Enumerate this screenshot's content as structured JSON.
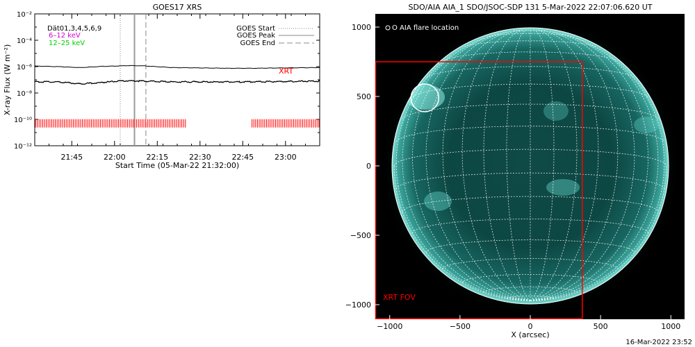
{
  "chart_data": [
    {
      "type": "line",
      "title": "GOES17 XRS",
      "xlabel": "Start Time (05-Mar-22 21:32:00)",
      "ylabel": "X-ray Flux (W m⁻²)",
      "y_scale": "log",
      "ylim": [
        1e-12,
        0.01
      ],
      "xlim": [
        "21:32",
        "23:12"
      ],
      "x_ticks": [
        "21:45",
        "22:00",
        "22:15",
        "22:30",
        "22:45",
        "23:00"
      ],
      "y_ticks": [
        "10⁻²",
        "10⁻⁴",
        "10⁻⁶",
        "10⁻⁸",
        "10⁻¹⁰",
        "10⁻¹²"
      ],
      "legend_left": [
        {
          "text": "Dät01,3,4,5,6,9",
          "color": "#000000"
        },
        {
          "text": "6–12 keV",
          "color": "#d000d0"
        },
        {
          "text": "12–25 keV",
          "color": "#00d000"
        }
      ],
      "legend_right": [
        {
          "label": "GOES Start",
          "style": "dotted"
        },
        {
          "label": "GOES Peak",
          "style": "solid"
        },
        {
          "label": "GOES End",
          "style": "dashed"
        }
      ],
      "annotation": {
        "text": "XRT",
        "color": "#ff0000"
      },
      "markers": {
        "goes_start": "22:02",
        "goes_peak": "22:07",
        "goes_end": "22:11"
      },
      "series": [
        {
          "x": [
            "21:32",
            "21:40",
            "21:48",
            "21:52",
            "21:56",
            "22:00",
            "22:05",
            "22:10",
            "22:20",
            "22:30",
            "22:40",
            "22:50",
            "23:00",
            "23:12"
          ],
          "values": [
            1.1e-06,
            1e-06,
            8.5e-07,
            9.5e-07,
            1.05e-06,
            1.1e-06,
            1.2e-06,
            1.15e-06,
            8.5e-07,
            8e-07,
            7.5e-07,
            7.5e-07,
            8e-07,
            8.5e-07
          ],
          "color": "#000000"
        },
        {
          "x": [
            "21:32",
            "21:40",
            "21:48",
            "21:52",
            "21:56",
            "22:00",
            "22:05",
            "22:10",
            "22:20",
            "22:30",
            "22:40",
            "22:50",
            "23:00",
            "23:12"
          ],
          "values": [
            7e-08,
            7e-08,
            5e-08,
            5.5e-08,
            6.5e-08,
            7.5e-08,
            8.5e-08,
            8e-08,
            7e-08,
            7e-08,
            7e-08,
            7e-08,
            7.5e-08,
            8e-08
          ],
          "color": "#000000"
        }
      ],
      "xrt_obs_segments": [
        [
          "21:32",
          "22:25"
        ],
        [
          "22:48",
          "23:12"
        ]
      ],
      "xrt_level": 5e-11,
      "xrt_color": "#ff0000"
    },
    {
      "type": "heatmap",
      "title": "SDO/AIA AIA_1 SDO/JSOC-SDP 131  5-Mar-2022 22:07:06.620 UT",
      "xlabel": "X (arcsec)",
      "ylabel": "",
      "xlim": [
        -1100,
        1100
      ],
      "ylim": [
        -1100,
        1100
      ],
      "x_ticks": [
        "−1000",
        "−500",
        "0",
        "500",
        "1000"
      ],
      "y_ticks": [
        "1000",
        "500",
        "0",
        "−500",
        "−1000"
      ],
      "legend": "O AIA flare location",
      "fov_label": "XRT FOV",
      "fov_color": "#ff0000",
      "fov_box": {
        "x0": -1100,
        "x1": 370,
        "y0": -1100,
        "y1": 750
      },
      "flare_location": {
        "x": -750,
        "y": 490
      },
      "solar_radius_arcsec": 968,
      "grid": true,
      "colormap": "teal"
    }
  ],
  "footer": {
    "timestamp": "16-Mar-2022 23:52"
  }
}
